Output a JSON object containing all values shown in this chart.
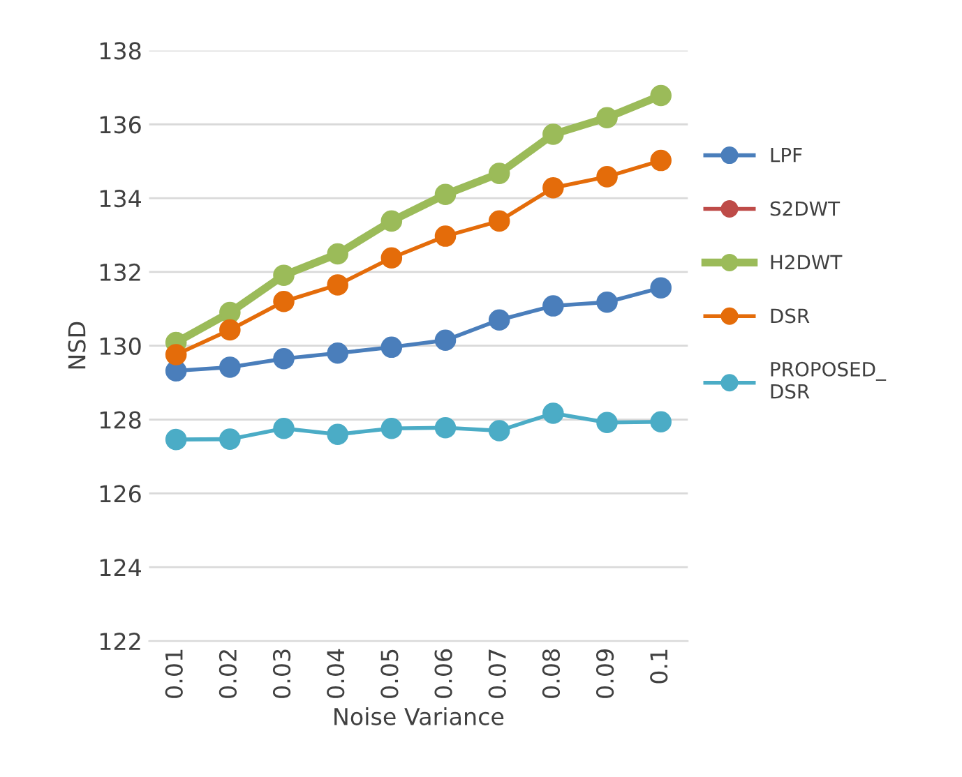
{
  "chart_data": {
    "type": "line",
    "xlabel": "Noise Variance",
    "ylabel": "NSD",
    "categories": [
      "0.01",
      "0.02",
      "0.03",
      "0.04",
      "0.05",
      "0.06",
      "0.07",
      "0.08",
      "0.09",
      "0.1"
    ],
    "series": [
      {
        "name": "LPF",
        "color": "#4a7ebb",
        "values": [
          129.32,
          129.42,
          129.65,
          129.8,
          129.96,
          130.15,
          130.7,
          131.08,
          131.18,
          131.57
        ]
      },
      {
        "name": "S2DWT",
        "color": "#be4b48",
        "values": [
          null,
          null,
          null,
          null,
          null,
          null,
          null,
          null,
          null,
          null
        ]
      },
      {
        "name": "H2DWT",
        "color": "#9bbb59",
        "values": [
          130.09,
          130.9,
          131.91,
          132.49,
          133.38,
          134.1,
          134.67,
          135.73,
          136.18,
          136.78
        ]
      },
      {
        "name": "DSR",
        "color": "#e46c0a",
        "values": [
          129.76,
          130.43,
          131.2,
          131.65,
          132.38,
          132.97,
          133.38,
          134.28,
          134.58,
          135.02
        ]
      },
      {
        "name": "PROPOSED_\nDSR",
        "color": "#4bacc6",
        "values": [
          127.46,
          127.47,
          127.76,
          127.6,
          127.76,
          127.78,
          127.7,
          128.17,
          127.92,
          127.94
        ]
      }
    ],
    "ylim": [
      122,
      138
    ],
    "yticks": [
      122,
      124,
      126,
      128,
      130,
      132,
      134,
      136,
      138
    ],
    "grid": "y",
    "legend": "right",
    "marker": "circle",
    "line_style": "solid"
  }
}
